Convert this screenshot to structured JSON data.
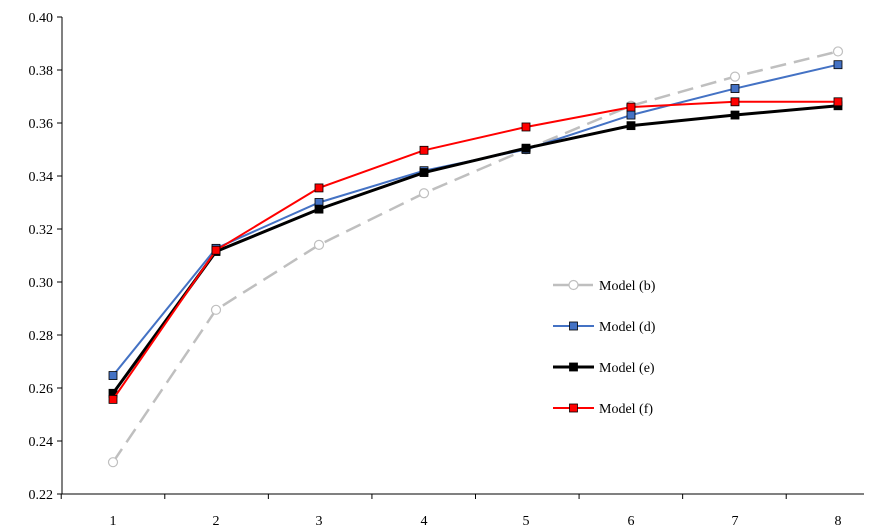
{
  "chart_data": {
    "type": "line",
    "title": "",
    "xlabel": "",
    "ylabel": "",
    "categories": [
      "1",
      "2",
      "3",
      "4",
      "5",
      "6",
      "7",
      "8"
    ],
    "x": [
      1,
      2,
      3,
      4,
      5,
      6,
      7,
      8
    ],
    "ylim": [
      0.22,
      0.4
    ],
    "yticks": [
      "0.22",
      "0.24",
      "0.26",
      "0.28",
      "0.30",
      "0.32",
      "0.34",
      "0.36",
      "0.38",
      "0.40"
    ],
    "grid": false,
    "legend_position": "right",
    "series": [
      {
        "name": "Model (b)",
        "values": [
          0.232,
          0.2895,
          0.314,
          0.3335,
          0.35,
          0.3665,
          0.3775,
          0.387
        ],
        "color": "#bfbfbf",
        "line_style": "dashed",
        "marker": "open-circle"
      },
      {
        "name": "Model (d)",
        "values": [
          0.2647,
          0.3127,
          0.33,
          0.342,
          0.35,
          0.363,
          0.373,
          0.382
        ],
        "color": "#4472c4",
        "line_style": "solid",
        "marker": "square"
      },
      {
        "name": "Model (e)",
        "values": [
          0.258,
          0.3115,
          0.3275,
          0.3413,
          0.3505,
          0.359,
          0.363,
          0.3665
        ],
        "color": "#000000",
        "line_style": "solid-thick",
        "marker": "square"
      },
      {
        "name": "Model (f)",
        "values": [
          0.2557,
          0.312,
          0.3355,
          0.3497,
          0.3585,
          0.366,
          0.368,
          0.368
        ],
        "color": "#ff0000",
        "line_style": "solid",
        "marker": "square"
      }
    ]
  }
}
